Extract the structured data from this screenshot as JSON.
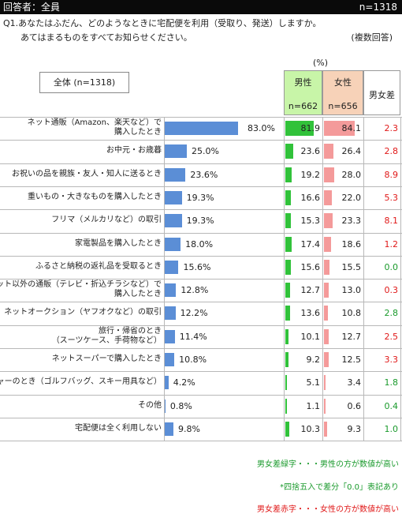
{
  "header": {
    "respondents": "回答者：全員",
    "n": "n=1318"
  },
  "question": {
    "line1": "Q1.あなたはふだん、どのようなときに宅配便を利用（受取り、発送）しますか。",
    "line2": "あてはまるものをすべてお知らせください。",
    "type": "(複数回答)"
  },
  "table": {
    "unit": "(%)",
    "all_label": "全体 (n=1318)",
    "male_label": "男性",
    "male_n": "n=662",
    "female_label": "女性",
    "female_n": "n=656",
    "diff_label": "男女差"
  },
  "colors": {
    "all_bar": "#5b8ed6",
    "male_bar": "#31c23a",
    "female_bar": "#f49a9a",
    "male_header": "#c8f5a8",
    "female_header": "#f7d2b8",
    "diff_male_higher": "#1a9a2c",
    "diff_female_higher": "#e01818"
  },
  "chart_data": {
    "type": "bar",
    "categories": [
      [
        "ネット通販（Amazon、楽天など）で",
        "購入したとき"
      ],
      [
        "お中元・お歳暮"
      ],
      [
        "お祝いの品を親族・友人・知人に送るとき"
      ],
      [
        "重いもの・大きなものを購入したとき"
      ],
      [
        "フリマ（メルカリなど）の取引"
      ],
      [
        "家電製品を購入したとき"
      ],
      [
        "ふるさと納税の返礼品を受取るとき"
      ],
      [
        "ネット以外の通販（テレビ・折込チラシなど）で",
        "購入したとき"
      ],
      [
        "ネットオークション（ヤフオクなど）の取引"
      ],
      [
        "旅行・帰省のとき",
        "（スーツケース、手荷物など）"
      ],
      [
        "ネットスーパーで購入したとき"
      ],
      [
        "レジャーのとき（ゴルフバッグ、スキー用具など）"
      ],
      [
        "その他"
      ],
      [
        "宅配便は全く利用しない"
      ]
    ],
    "all_labels": [
      "83.0%",
      "25.0%",
      "23.6%",
      "19.3%",
      "19.3%",
      "18.0%",
      "15.6%",
      "12.8%",
      "12.2%",
      "11.4%",
      "10.8%",
      "4.2%",
      "0.8%",
      "9.8%"
    ],
    "series": [
      {
        "name": "全体 (n=1318)",
        "values": [
          83.0,
          25.0,
          23.6,
          19.3,
          19.3,
          18.0,
          15.6,
          12.8,
          12.2,
          11.4,
          10.8,
          4.2,
          0.8,
          9.8
        ]
      },
      {
        "name": "男性",
        "values": [
          81.9,
          23.6,
          19.2,
          16.6,
          15.3,
          17.4,
          15.6,
          12.7,
          13.6,
          10.1,
          9.2,
          5.1,
          1.1,
          10.3
        ]
      },
      {
        "name": "女性",
        "values": [
          84.1,
          26.4,
          28.0,
          22.0,
          23.3,
          18.6,
          15.5,
          13.0,
          10.8,
          12.7,
          12.5,
          3.4,
          0.6,
          9.3
        ]
      }
    ],
    "diff": {
      "values": [
        "2.3",
        "2.8",
        "8.9",
        "5.3",
        "8.1",
        "1.2",
        "0.0",
        "0.3",
        "2.8",
        "2.5",
        "3.3",
        "1.8",
        "0.4",
        "1.0"
      ],
      "higher": [
        "female",
        "female",
        "female",
        "female",
        "female",
        "female",
        "male",
        "female",
        "male",
        "female",
        "female",
        "male",
        "male",
        "male"
      ]
    }
  },
  "notes": {
    "green": "男女差緑字・・・男性の方が数値が高い",
    "rounding": "*四捨五入で差分「0.0」表記あり",
    "red": "男女差赤字・・・女性の方が数値が高い"
  }
}
